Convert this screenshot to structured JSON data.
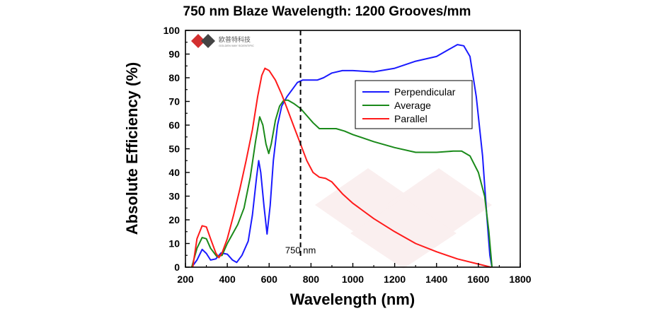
{
  "chart_data": {
    "type": "line",
    "title": "750 nm Blaze Wavelength: 1200 Grooves/mm",
    "xlabel": "Wavelength (nm)",
    "ylabel": "Absolute Efficiency (%)",
    "xlim": [
      200,
      1800
    ],
    "ylim": [
      0,
      100
    ],
    "xticks": [
      200,
      400,
      600,
      800,
      1000,
      1200,
      1400,
      1600,
      1800
    ],
    "yticks": [
      0,
      10,
      20,
      30,
      40,
      50,
      60,
      70,
      80,
      90,
      100
    ],
    "grid": false,
    "legend_position": "upper-right",
    "annotation": {
      "x": 750,
      "label": "750 nm",
      "style": "dashed-vertical-line"
    },
    "series": [
      {
        "name": "Perpendicular",
        "color": "#1a1aff",
        "points": [
          [
            230,
            0
          ],
          [
            255,
            3
          ],
          [
            280,
            7.5
          ],
          [
            300,
            5.8
          ],
          [
            320,
            3
          ],
          [
            345,
            3.5
          ],
          [
            370,
            6
          ],
          [
            400,
            5.5
          ],
          [
            425,
            3
          ],
          [
            445,
            2
          ],
          [
            470,
            5
          ],
          [
            500,
            11
          ],
          [
            520,
            22
          ],
          [
            540,
            38
          ],
          [
            550,
            45
          ],
          [
            560,
            40
          ],
          [
            575,
            26
          ],
          [
            590,
            14
          ],
          [
            605,
            26
          ],
          [
            620,
            45
          ],
          [
            640,
            60
          ],
          [
            660,
            68
          ],
          [
            685,
            72
          ],
          [
            710,
            75
          ],
          [
            735,
            78
          ],
          [
            760,
            79
          ],
          [
            800,
            79
          ],
          [
            830,
            79
          ],
          [
            860,
            80
          ],
          [
            900,
            82
          ],
          [
            950,
            83
          ],
          [
            1000,
            83
          ],
          [
            1100,
            82.5
          ],
          [
            1200,
            84
          ],
          [
            1300,
            87
          ],
          [
            1400,
            89
          ],
          [
            1460,
            92
          ],
          [
            1500,
            94
          ],
          [
            1530,
            93.5
          ],
          [
            1560,
            89
          ],
          [
            1590,
            72
          ],
          [
            1620,
            47
          ],
          [
            1640,
            22
          ],
          [
            1655,
            5
          ],
          [
            1665,
            0
          ]
        ]
      },
      {
        "name": "Average",
        "color": "#1a8a1a",
        "points": [
          [
            230,
            0
          ],
          [
            255,
            8
          ],
          [
            280,
            12.5
          ],
          [
            300,
            12
          ],
          [
            320,
            8
          ],
          [
            350,
            4.5
          ],
          [
            375,
            5
          ],
          [
            400,
            10
          ],
          [
            425,
            14
          ],
          [
            450,
            18
          ],
          [
            480,
            25
          ],
          [
            510,
            38
          ],
          [
            535,
            53
          ],
          [
            555,
            63.5
          ],
          [
            570,
            60
          ],
          [
            585,
            52
          ],
          [
            598,
            48
          ],
          [
            610,
            52
          ],
          [
            630,
            62
          ],
          [
            650,
            68
          ],
          [
            670,
            70.5
          ],
          [
            690,
            70.5
          ],
          [
            720,
            69
          ],
          [
            750,
            67
          ],
          [
            780,
            64
          ],
          [
            810,
            61
          ],
          [
            840,
            58.5
          ],
          [
            880,
            58.5
          ],
          [
            920,
            58.5
          ],
          [
            960,
            57.5
          ],
          [
            1000,
            56
          ],
          [
            1100,
            53
          ],
          [
            1200,
            50.5
          ],
          [
            1300,
            48.5
          ],
          [
            1400,
            48.5
          ],
          [
            1480,
            49
          ],
          [
            1520,
            49
          ],
          [
            1560,
            47
          ],
          [
            1600,
            40
          ],
          [
            1630,
            30
          ],
          [
            1650,
            15
          ],
          [
            1665,
            0
          ]
        ]
      },
      {
        "name": "Parallel",
        "color": "#ff1a1a",
        "points": [
          [
            235,
            0
          ],
          [
            255,
            12
          ],
          [
            280,
            17.5
          ],
          [
            300,
            17
          ],
          [
            320,
            12
          ],
          [
            345,
            6
          ],
          [
            360,
            4
          ],
          [
            375,
            6
          ],
          [
            400,
            12
          ],
          [
            430,
            22
          ],
          [
            460,
            33
          ],
          [
            490,
            45
          ],
          [
            520,
            58
          ],
          [
            545,
            72
          ],
          [
            565,
            81
          ],
          [
            580,
            84
          ],
          [
            600,
            83
          ],
          [
            630,
            79
          ],
          [
            660,
            73
          ],
          [
            690,
            66
          ],
          [
            720,
            59
          ],
          [
            750,
            52
          ],
          [
            780,
            45
          ],
          [
            810,
            40
          ],
          [
            840,
            38
          ],
          [
            870,
            37.5
          ],
          [
            900,
            36
          ],
          [
            950,
            31
          ],
          [
            1000,
            27
          ],
          [
            1100,
            20.5
          ],
          [
            1200,
            15
          ],
          [
            1300,
            10
          ],
          [
            1400,
            6.5
          ],
          [
            1500,
            3.5
          ],
          [
            1600,
            1.3
          ],
          [
            1660,
            0
          ]
        ]
      }
    ]
  },
  "logo": {
    "cn": "欧普特科技",
    "en": "GOLDEN WAY SCIENTIFIC"
  }
}
